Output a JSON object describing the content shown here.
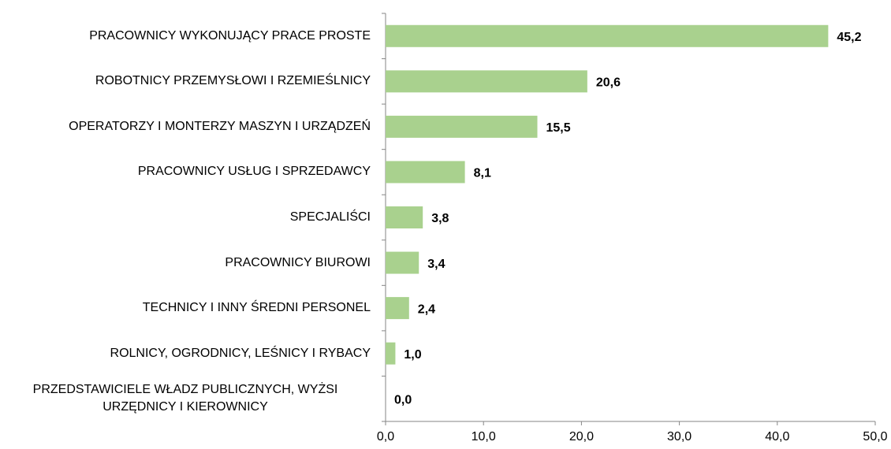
{
  "chart_data": {
    "type": "bar",
    "orientation": "horizontal",
    "categories": [
      "PRACOWNICY WYKONUJĄCY PRACE PROSTE",
      "ROBOTNICY PRZEMYSŁOWI I RZEMIEŚLNICY",
      "OPERATORZY I MONTERZY MASZYN I URZĄDZEŃ",
      "PRACOWNICY USŁUG I SPRZEDAWCY",
      "SPECJALIŚCI",
      "PRACOWNICY BIUROWI",
      "TECHNICY I INNY ŚREDNI PERSONEL",
      "ROLNICY, OGRODNICY, LEŚNICY I RYBACY",
      "PRZEDSTAWICIELE WŁADZ PUBLICZNYCH, WYŻSI URZĘDNICY I KIEROWNICY"
    ],
    "values": [
      45.2,
      20.6,
      15.5,
      8.1,
      3.8,
      3.4,
      2.4,
      1.0,
      0.0
    ],
    "value_labels": [
      "45,2",
      "20,6",
      "15,5",
      "8,1",
      "3,8",
      "3,4",
      "2,4",
      "1,0",
      "0,0"
    ],
    "color": "#a9d18e",
    "xlim": [
      0,
      50
    ],
    "xticks": [
      {
        "value": 0,
        "label": "0,0"
      },
      {
        "value": 10,
        "label": "10,0"
      },
      {
        "value": 20,
        "label": "20,0"
      },
      {
        "value": 30,
        "label": "30,0"
      },
      {
        "value": 40,
        "label": "40,0"
      },
      {
        "value": 50,
        "label": "50,0"
      }
    ]
  }
}
